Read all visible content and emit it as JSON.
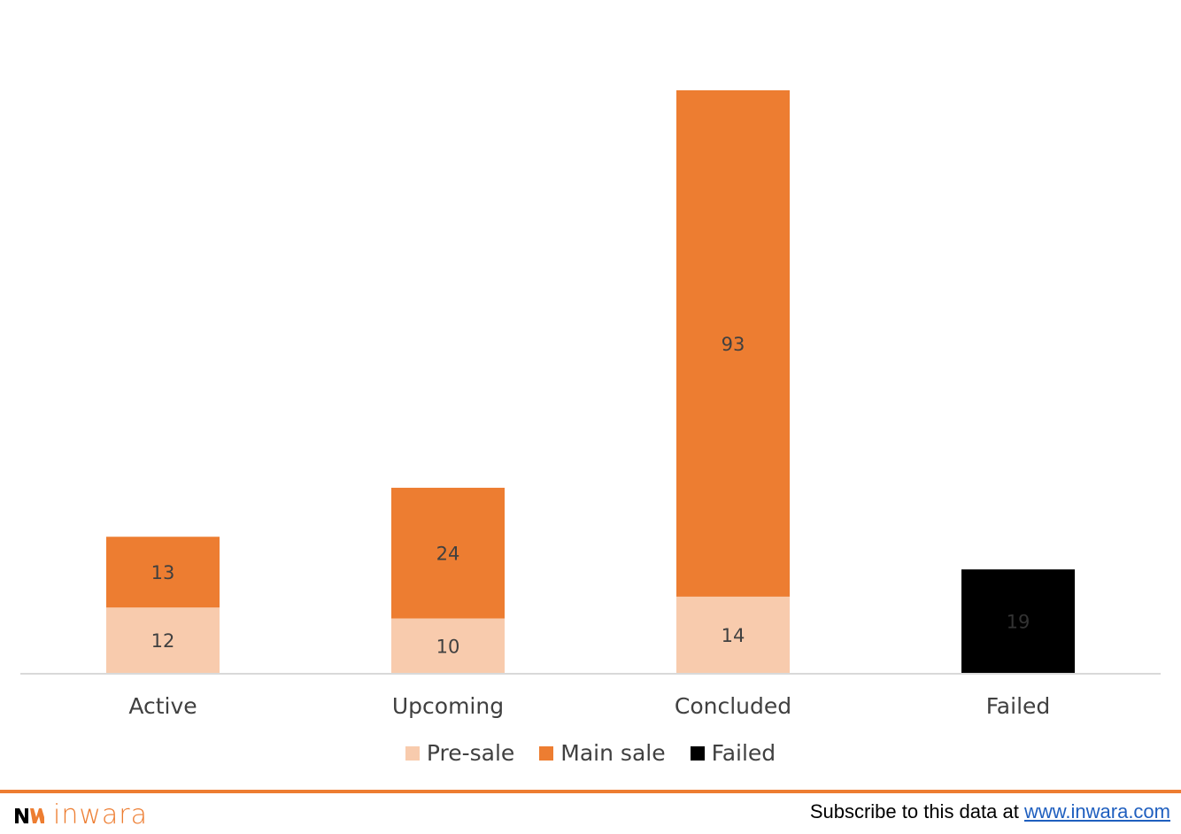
{
  "colors": {
    "pre_sale": "#f8cbad",
    "main_sale": "#ed7d31",
    "failed": "#000000",
    "data_label": "#404040",
    "failed_label": "#333333",
    "axis": "#d9d9d9",
    "brand": "#ed7d31"
  },
  "chart_data": {
    "type": "bar",
    "stacked": true,
    "categories": [
      "Active",
      "Upcoming",
      "Concluded",
      "Failed"
    ],
    "series": [
      {
        "name": "Pre-sale",
        "values": [
          12,
          10,
          14,
          null
        ]
      },
      {
        "name": "Main sale",
        "values": [
          13,
          24,
          93,
          null
        ]
      },
      {
        "name": "Failed",
        "values": [
          null,
          null,
          null,
          19
        ]
      }
    ],
    "ylim": [
      0,
      107
    ],
    "grid": false,
    "legend_position": "bottom",
    "title": "",
    "xlabel": "",
    "ylabel": ""
  },
  "footer": {
    "brand_name": "inwara",
    "logo_icon": "inwara-logo-icon",
    "subscribe_text": "Subscribe to this data at ",
    "subscribe_link": "www.inwara.com"
  }
}
